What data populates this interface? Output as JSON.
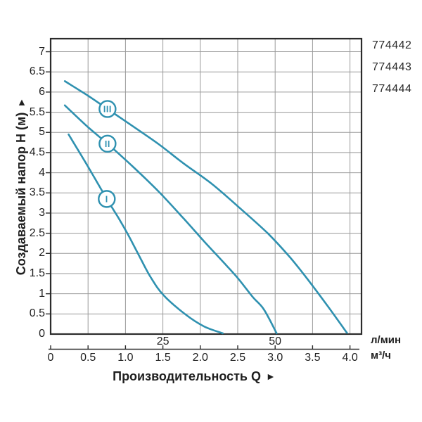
{
  "chart_data": {
    "type": "line",
    "title": "",
    "ylabel": "Создаваемый напор H (м)",
    "xlabel": "Производительность Q",
    "arrow": "►",
    "grid": true,
    "legend_position": "product codes stacked top-right outside plot",
    "ylim": [
      0,
      7.3
    ],
    "xlim_m3h": [
      0,
      4.15
    ],
    "y_axis": {
      "tick_values": [
        7,
        6.5,
        6,
        5.5,
        5,
        4.5,
        4,
        3.5,
        3,
        2.5,
        2,
        1.5,
        1,
        0.5,
        0
      ],
      "tick_labels": [
        "7",
        "6.5",
        "6",
        "5.5",
        "5",
        "4.5",
        "4",
        "3.5",
        "3",
        "2.5",
        "2",
        "1.5",
        "1",
        "0.5",
        "0"
      ]
    },
    "x_axis_m3h": {
      "unit": "м³/ч",
      "tick_values": [
        0,
        0.5,
        1,
        1.5,
        2,
        2.5,
        3,
        3.5,
        4
      ],
      "tick_labels": [
        "0",
        "0.5",
        "1.0",
        "1.5",
        "2.0",
        "2.5",
        "3.0",
        "3.5",
        "4.0"
      ]
    },
    "x_axis_lmin": {
      "unit": "л/мин",
      "tick_values_m3h": [
        1.5,
        3
      ],
      "tick_labels": [
        "25",
        "50"
      ]
    },
    "series": [
      {
        "name": "I",
        "badge_at": [
          0.75,
          3.35
        ],
        "points": [
          [
            0.24,
            4.95
          ],
          [
            0.5,
            4.15
          ],
          [
            0.75,
            3.35
          ],
          [
            0.9,
            2.9
          ],
          [
            1.03,
            2.48
          ],
          [
            1.18,
            1.95
          ],
          [
            1.33,
            1.43
          ],
          [
            1.51,
            0.96
          ],
          [
            1.8,
            0.49
          ],
          [
            2.05,
            0.19
          ],
          [
            2.3,
            0.02
          ]
        ]
      },
      {
        "name": "II",
        "badge_at": [
          0.76,
          4.72
        ],
        "points": [
          [
            0.19,
            5.67
          ],
          [
            0.5,
            5.13
          ],
          [
            0.76,
            4.72
          ],
          [
            1.1,
            4.15
          ],
          [
            1.45,
            3.52
          ],
          [
            1.77,
            2.88
          ],
          [
            2.05,
            2.3
          ],
          [
            2.3,
            1.8
          ],
          [
            2.5,
            1.39
          ],
          [
            2.7,
            0.92
          ],
          [
            2.85,
            0.61
          ],
          [
            3.02,
            0.02
          ]
        ]
      },
      {
        "name": "III",
        "badge_at": [
          0.76,
          5.58
        ],
        "points": [
          [
            0.19,
            6.27
          ],
          [
            0.5,
            5.91
          ],
          [
            0.76,
            5.58
          ],
          [
            1.1,
            5.15
          ],
          [
            1.45,
            4.7
          ],
          [
            1.77,
            4.24
          ],
          [
            2.15,
            3.73
          ],
          [
            2.5,
            3.17
          ],
          [
            2.9,
            2.5
          ],
          [
            3.2,
            1.9
          ],
          [
            3.45,
            1.32
          ],
          [
            3.7,
            0.7
          ],
          [
            3.96,
            0.03
          ]
        ]
      }
    ],
    "product_codes": [
      "774442",
      "774443",
      "774444"
    ],
    "colors": {
      "curve": "#2f91b0",
      "grid": "#9a9a9a",
      "frame": "#2b2b2b",
      "text": "#1f1f1f"
    }
  }
}
